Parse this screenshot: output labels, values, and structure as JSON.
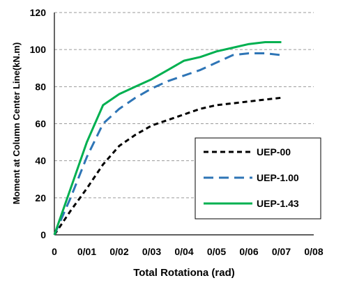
{
  "chart_data": {
    "type": "line",
    "title": "",
    "xlabel": "Total Rotationa (rad)",
    "ylabel": "Moment at Column Center Line(kN.m)",
    "xlim": [
      0,
      0.08
    ],
    "ylim": [
      0,
      120
    ],
    "x_ticks": [
      {
        "value": 0,
        "label": "0"
      },
      {
        "value": 0.01,
        "label": "0/01"
      },
      {
        "value": 0.02,
        "label": "0/02"
      },
      {
        "value": 0.03,
        "label": "0/03"
      },
      {
        "value": 0.04,
        "label": "0/04"
      },
      {
        "value": 0.05,
        "label": "0/05"
      },
      {
        "value": 0.06,
        "label": "0/06"
      },
      {
        "value": 0.07,
        "label": "0/07"
      },
      {
        "value": 0.08,
        "label": "0/08"
      }
    ],
    "y_ticks": [
      {
        "value": 0,
        "label": "0"
      },
      {
        "value": 20,
        "label": "20"
      },
      {
        "value": 40,
        "label": "40"
      },
      {
        "value": 60,
        "label": "60"
      },
      {
        "value": 80,
        "label": "80"
      },
      {
        "value": 100,
        "label": "100"
      },
      {
        "value": 120,
        "label": "120"
      }
    ],
    "grid": "horizontal dashed",
    "legend_position": "bottom-right",
    "series": [
      {
        "name": "UEP-00",
        "color": "#000000",
        "line_style": "dashed",
        "points": [
          [
            0,
            0
          ],
          [
            0.005,
            13
          ],
          [
            0.01,
            25
          ],
          [
            0.015,
            38
          ],
          [
            0.02,
            48
          ],
          [
            0.025,
            54
          ],
          [
            0.03,
            59
          ],
          [
            0.035,
            62
          ],
          [
            0.04,
            65
          ],
          [
            0.045,
            68
          ],
          [
            0.05,
            70
          ],
          [
            0.055,
            71
          ],
          [
            0.06,
            72
          ],
          [
            0.065,
            73
          ],
          [
            0.07,
            74
          ]
        ]
      },
      {
        "name": "UEP-1.00",
        "color": "#2E75B6",
        "line_style": "dashed",
        "points": [
          [
            0,
            0
          ],
          [
            0.005,
            20
          ],
          [
            0.01,
            42
          ],
          [
            0.015,
            60
          ],
          [
            0.02,
            68
          ],
          [
            0.025,
            74
          ],
          [
            0.03,
            79
          ],
          [
            0.035,
            83
          ],
          [
            0.04,
            86
          ],
          [
            0.045,
            89
          ],
          [
            0.05,
            93
          ],
          [
            0.055,
            97
          ],
          [
            0.06,
            98
          ],
          [
            0.065,
            98
          ],
          [
            0.07,
            97
          ]
        ]
      },
      {
        "name": "UEP-1.43",
        "color": "#00B050",
        "line_style": "solid",
        "points": [
          [
            0,
            0
          ],
          [
            0.005,
            25
          ],
          [
            0.01,
            50
          ],
          [
            0.015,
            70
          ],
          [
            0.02,
            76
          ],
          [
            0.025,
            80
          ],
          [
            0.03,
            84
          ],
          [
            0.035,
            89
          ],
          [
            0.04,
            94
          ],
          [
            0.045,
            96
          ],
          [
            0.05,
            99
          ],
          [
            0.055,
            101
          ],
          [
            0.06,
            103
          ],
          [
            0.065,
            104
          ],
          [
            0.07,
            104
          ]
        ]
      }
    ]
  }
}
